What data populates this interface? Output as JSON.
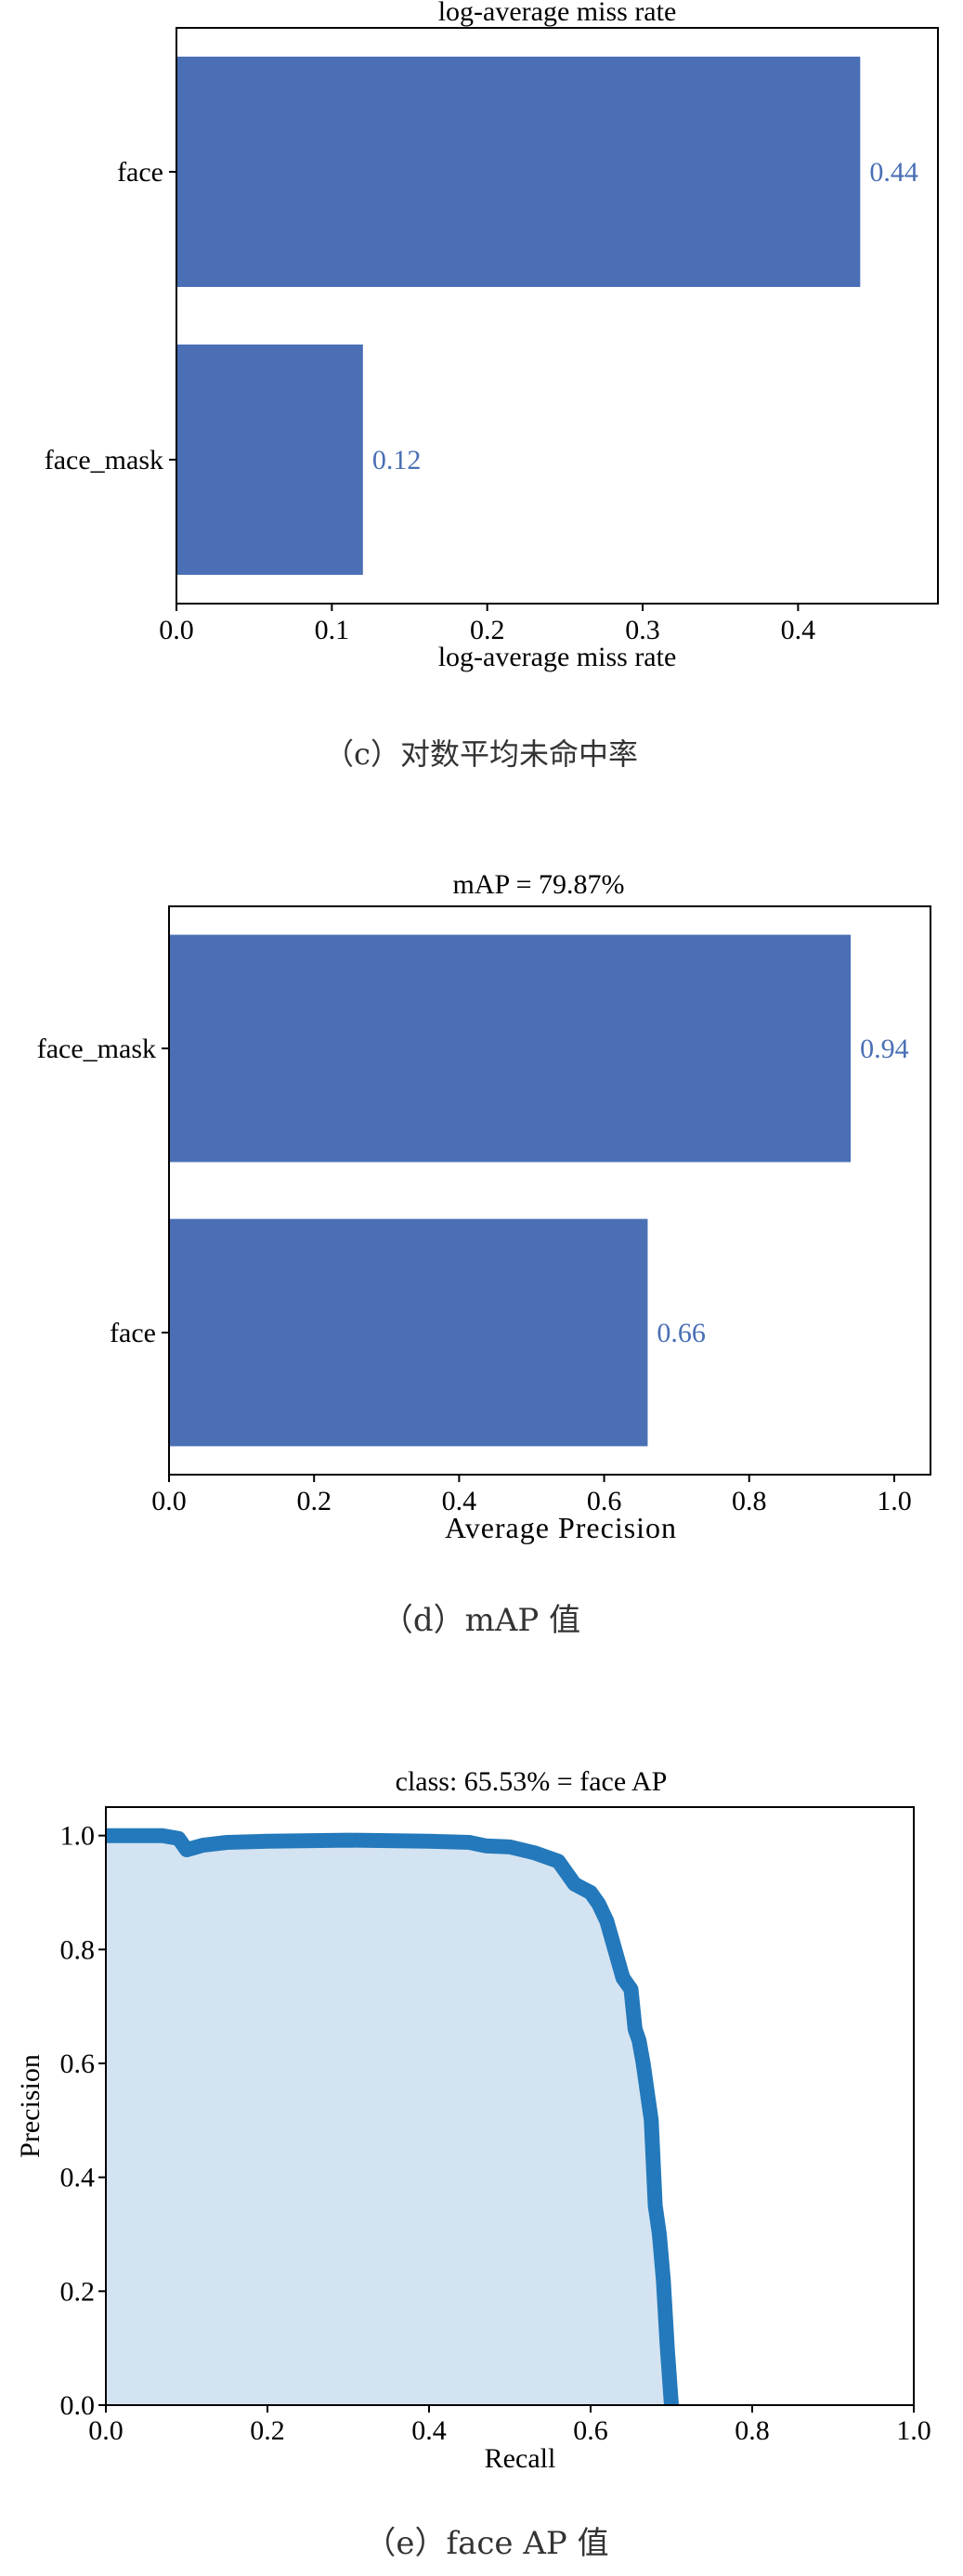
{
  "chart_data": [
    {
      "type": "bar",
      "orientation": "horizontal",
      "title": "log-average miss rate",
      "xlabel": "log-average miss rate",
      "categories": [
        "face",
        "face_mask"
      ],
      "values": [
        0.44,
        0.12
      ],
      "value_labels": [
        "0.44",
        "0.12"
      ],
      "xlim": [
        0,
        0.49
      ],
      "xticks": [
        "0.0",
        "0.1",
        "0.2",
        "0.3",
        "0.4"
      ],
      "caption": "（c）对数平均未命中率",
      "bar_color": "#4a6fb5",
      "label_color": "#4a6fb5"
    },
    {
      "type": "bar",
      "orientation": "horizontal",
      "title": "mAP = 79.87%",
      "xlabel": "Average Precision",
      "categories": [
        "face_mask",
        "face"
      ],
      "values": [
        0.94,
        0.66
      ],
      "value_labels": [
        "0.94",
        "0.66"
      ],
      "xlim": [
        0,
        1.05
      ],
      "xticks": [
        "0.0",
        "0.2",
        "0.4",
        "0.6",
        "0.8",
        "1.0"
      ],
      "caption": "（d）mAP 值",
      "bar_color": "#4a6fb5",
      "label_color": "#4a6fb5"
    },
    {
      "type": "area",
      "title": "class: 65.53% = face AP",
      "xlabel": "Recall",
      "ylabel": "Precision",
      "xlim": [
        0,
        1
      ],
      "ylim": [
        0,
        1.05
      ],
      "xticks": [
        "0.0",
        "0.2",
        "0.4",
        "0.6",
        "0.8",
        "1.0"
      ],
      "yticks": [
        "0.0",
        "0.2",
        "0.4",
        "0.6",
        "0.8",
        "1.0"
      ],
      "line_color": "#2379bb",
      "fill_color": "#d4e3f1",
      "caption": "（e）face AP 值",
      "points": [
        [
          0.0,
          1.0
        ],
        [
          0.07,
          1.0
        ],
        [
          0.09,
          0.995
        ],
        [
          0.1,
          0.975
        ],
        [
          0.12,
          0.983
        ],
        [
          0.15,
          0.988
        ],
        [
          0.2,
          0.99
        ],
        [
          0.3,
          0.992
        ],
        [
          0.4,
          0.99
        ],
        [
          0.45,
          0.988
        ],
        [
          0.47,
          0.982
        ],
        [
          0.5,
          0.98
        ],
        [
          0.53,
          0.97
        ],
        [
          0.56,
          0.955
        ],
        [
          0.57,
          0.935
        ],
        [
          0.58,
          0.915
        ],
        [
          0.6,
          0.9
        ],
        [
          0.61,
          0.88
        ],
        [
          0.62,
          0.85
        ],
        [
          0.63,
          0.8
        ],
        [
          0.64,
          0.75
        ],
        [
          0.65,
          0.73
        ],
        [
          0.655,
          0.66
        ],
        [
          0.66,
          0.64
        ],
        [
          0.665,
          0.6
        ],
        [
          0.675,
          0.5
        ],
        [
          0.68,
          0.35
        ],
        [
          0.685,
          0.3
        ],
        [
          0.69,
          0.22
        ],
        [
          0.695,
          0.1
        ],
        [
          0.7,
          0.0
        ]
      ]
    }
  ]
}
